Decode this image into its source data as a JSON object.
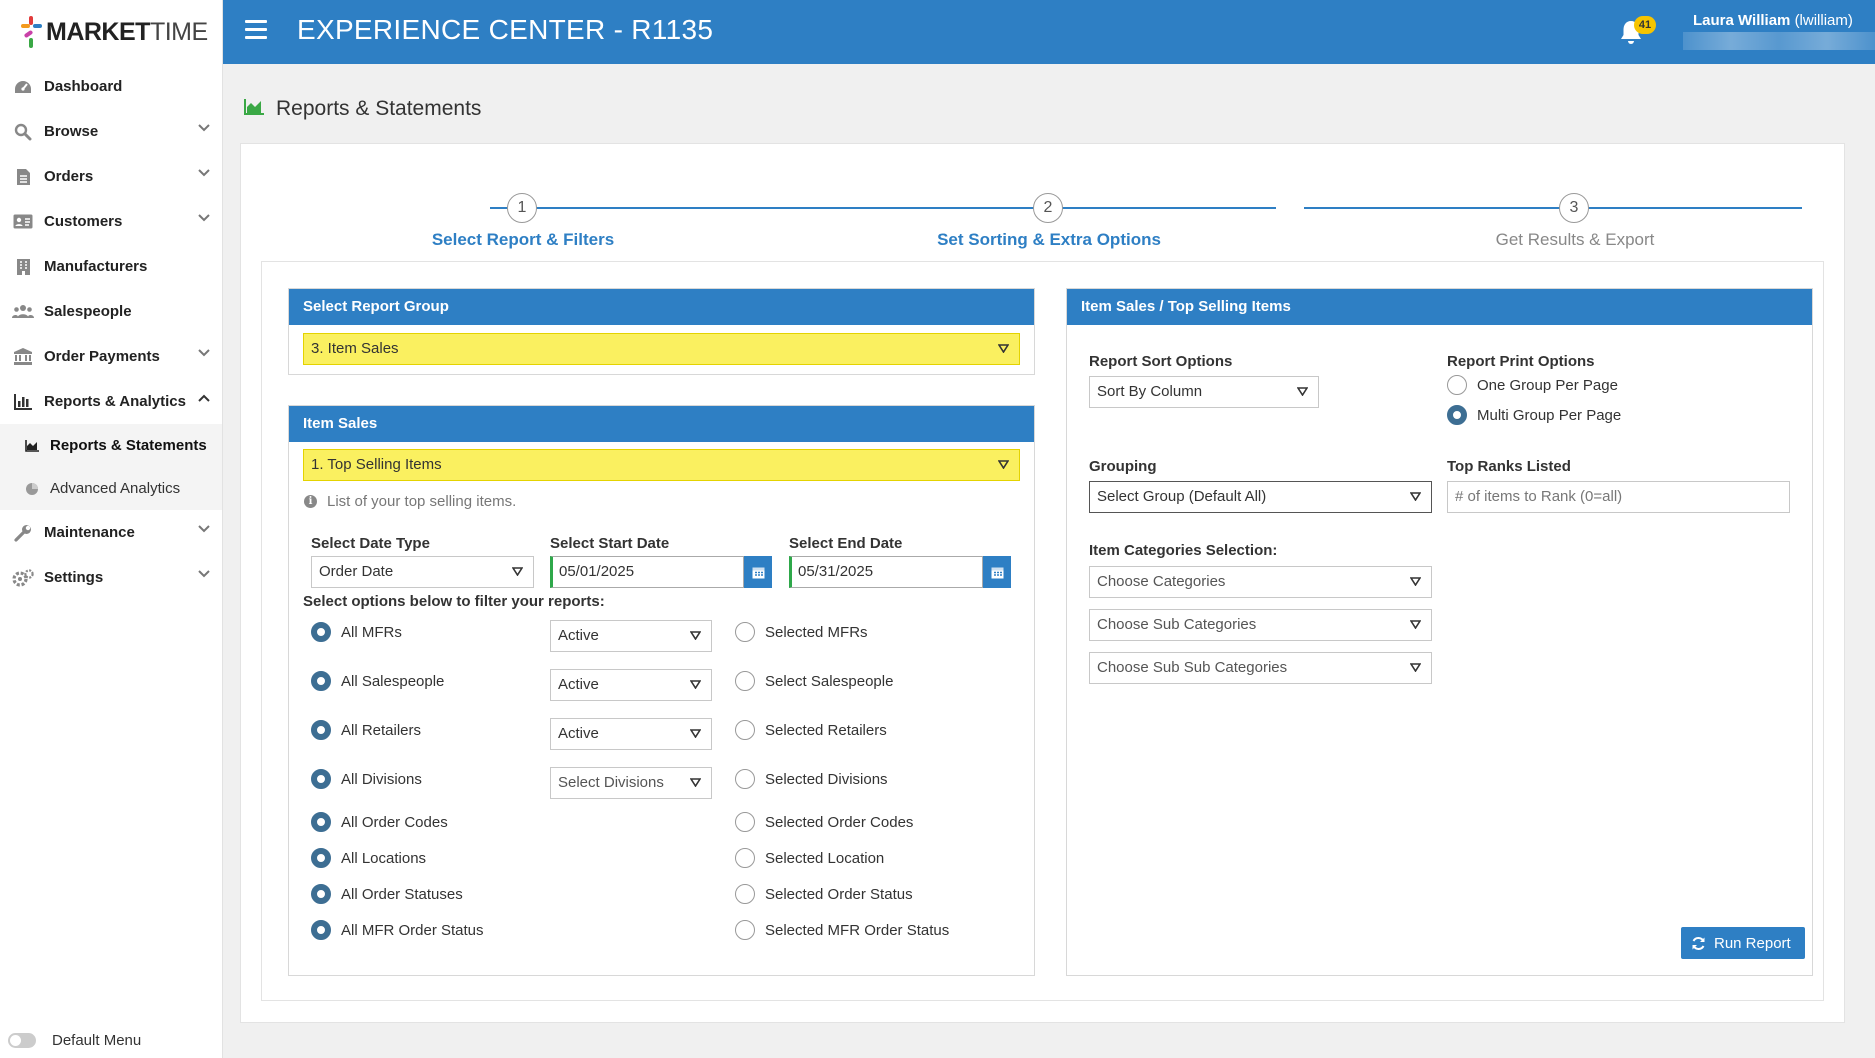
{
  "brand": {
    "bold": "MARKET",
    "light": "TIME"
  },
  "header": {
    "title": "EXPERIENCE CENTER - R1135",
    "notification_count": "41",
    "user_name": "Laura William",
    "user_login": "(lwilliam)"
  },
  "sidebar": {
    "items": [
      {
        "label": "Dashboard",
        "icon": "dashboard-icon"
      },
      {
        "label": "Browse",
        "icon": "search-icon"
      },
      {
        "label": "Orders",
        "icon": "document-icon"
      },
      {
        "label": "Customers",
        "icon": "id-card-icon"
      },
      {
        "label": "Manufacturers",
        "icon": "building-icon"
      },
      {
        "label": "Salespeople",
        "icon": "users-icon"
      },
      {
        "label": "Order Payments",
        "icon": "bank-icon"
      },
      {
        "label": "Reports & Analytics",
        "icon": "bar-chart-icon"
      },
      {
        "label": "Maintenance",
        "icon": "wrench-icon"
      },
      {
        "label": "Settings",
        "icon": "gears-icon"
      }
    ],
    "sub_items": [
      {
        "label": "Reports & Statements",
        "icon": "area-chart-icon"
      },
      {
        "label": "Advanced Analytics",
        "icon": "pie-chart-icon"
      }
    ],
    "default_menu": "Default Menu"
  },
  "page": {
    "title": "Reports & Statements"
  },
  "stepper": {
    "steps": [
      {
        "number": "1",
        "label": "Select Report & Filters"
      },
      {
        "number": "2",
        "label": "Set Sorting & Extra Options"
      },
      {
        "number": "3",
        "label": "Get Results & Export"
      }
    ]
  },
  "report_group": {
    "heading": "Select Report Group",
    "selected": "3. Item Sales"
  },
  "item_sales": {
    "heading": "Item Sales",
    "selected": "1. Top Selling Items",
    "description": "List of your top selling items.",
    "date_type_label": "Select Date Type",
    "date_type_value": "Order Date",
    "start_date_label": "Select Start Date",
    "start_date_value": "05/01/2025",
    "end_date_label": "Select End Date",
    "end_date_value": "05/31/2025",
    "filter_heading": "Select options below to filter your reports:",
    "filters": [
      {
        "all_label": "All MFRs",
        "status": "Active",
        "selected_label": "Selected MFRs"
      },
      {
        "all_label": "All Salespeople",
        "status": "Active",
        "selected_label": "Select Salespeople"
      },
      {
        "all_label": "All Retailers",
        "status": "Active",
        "selected_label": "Selected Retailers"
      },
      {
        "all_label": "All Divisions",
        "status": "Select Divisions",
        "selected_label": "Selected Divisions"
      },
      {
        "all_label": "All Order Codes",
        "selected_label": "Selected Order Codes"
      },
      {
        "all_label": "All Locations",
        "selected_label": "Selected Location"
      },
      {
        "all_label": "All Order Statuses",
        "selected_label": "Selected Order Status"
      },
      {
        "all_label": "All MFR Order Status",
        "selected_label": "Selected MFR Order Status"
      }
    ]
  },
  "options": {
    "heading": "Item Sales / Top Selling Items",
    "sort_label": "Report Sort Options",
    "sort_value": "Sort By Column",
    "print_label": "Report Print Options",
    "print_one": "One Group Per Page",
    "print_multi": "Multi Group Per Page",
    "grouping_label": "Grouping",
    "grouping_value": "Select Group (Default All)",
    "ranks_label": "Top Ranks Listed",
    "ranks_placeholder": "# of items to Rank (0=all)",
    "categories_label": "Item Categories Selection:",
    "categories_placeholder": "Choose Categories",
    "sub_categories_placeholder": "Choose Sub Categories",
    "sub_sub_categories_placeholder": "Choose Sub Sub Categories",
    "run_button": "Run Report"
  },
  "colors": {
    "primary": "#2e7fc4",
    "highlight": "#faf060",
    "badge": "#f6c400",
    "radio_selected": "#3d6e93",
    "date_valid": "#2ea84a"
  }
}
